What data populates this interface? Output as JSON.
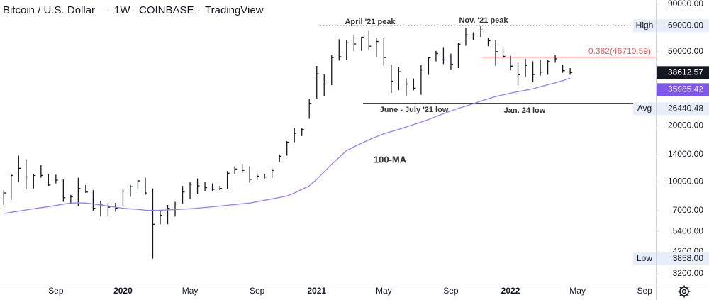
{
  "chart_data": {
    "type": "ohlc",
    "title": {
      "symbol": "Bitcoin / U.S. Dollar",
      "interval": "1W",
      "exchange": "COINBASE",
      "source": "TradingView"
    },
    "log_scale": true,
    "ylim": [
      2830,
      94800
    ],
    "yticks": [
      {
        "value": 90000,
        "label": "90000.00"
      },
      {
        "value": 50000,
        "label": "50000.00"
      },
      {
        "value": 20000,
        "label": "20000.00"
      },
      {
        "value": 14000,
        "label": "14000.00"
      },
      {
        "value": 10000,
        "label": "10000.00"
      },
      {
        "value": 7000,
        "label": "7000.00"
      },
      {
        "value": 5400,
        "label": "5400.00"
      },
      {
        "value": 4200,
        "label": "4200.00"
      },
      {
        "value": 3200,
        "label": "3200.00"
      }
    ],
    "categories": [
      null,
      null,
      null,
      null,
      null,
      null,
      null,
      "Sep",
      null,
      null,
      null,
      null,
      null,
      null,
      null,
      null,
      "2020",
      null,
      null,
      null,
      null,
      null,
      null,
      null,
      null,
      "May",
      null,
      null,
      null,
      null,
      null,
      null,
      null,
      null,
      "Sep",
      null,
      null,
      null,
      null,
      null,
      null,
      null,
      "2021",
      null,
      null,
      null,
      null,
      null,
      null,
      null,
      null,
      "May",
      null,
      null,
      null,
      null,
      null,
      null,
      null,
      null,
      "Sep",
      null,
      null,
      null,
      null,
      null,
      null,
      null,
      "2022",
      null,
      null,
      null,
      null,
      null,
      null,
      null,
      null,
      "May",
      null,
      null,
      null,
      null,
      null,
      null,
      null,
      null,
      "Sep",
      null
    ],
    "bar_color": "#131722",
    "high": [
      9000,
      11000,
      13800,
      13200,
      11000,
      12300,
      11000,
      10900,
      10300,
      8500,
      10500,
      9600,
      9000,
      7900,
      7700,
      7700,
      9200,
      9600,
      10200,
      10500,
      9200,
      7000,
      7500,
      7800,
      9500,
      10000,
      10400,
      10000,
      9800,
      9500,
      11400,
      12100,
      12500,
      12100,
      11100,
      11000,
      11800,
      14000,
      16500,
      19400,
      19400,
      28000,
      41900,
      37800,
      48000,
      58300,
      57500,
      61700,
      60000,
      64800,
      59500,
      59000,
      42500,
      41300,
      36000,
      35900,
      42300,
      46700,
      50500,
      52900,
      48800,
      56000,
      67000,
      63500,
      69000,
      59500,
      57500,
      51900,
      47500,
      43500,
      45800,
      44400,
      45400,
      45200,
      48200,
      42500,
      40800,
      null,
      null,
      null,
      null,
      null,
      null,
      null,
      null,
      null,
      null,
      null
    ],
    "low": [
      7500,
      8000,
      10000,
      9100,
      9200,
      10500,
      9500,
      9800,
      7800,
      7700,
      7400,
      8700,
      7000,
      6500,
      6500,
      6900,
      7400,
      8300,
      9100,
      8500,
      3858,
      5900,
      5900,
      6500,
      7600,
      8100,
      8600,
      8900,
      8900,
      9000,
      9100,
      11000,
      11100,
      9900,
      10200,
      10400,
      10500,
      12800,
      13800,
      16300,
      17600,
      21800,
      28000,
      28800,
      33000,
      44800,
      45000,
      50300,
      50500,
      51000,
      47000,
      42000,
      30000,
      31000,
      28800,
      31000,
      29300,
      37500,
      44300,
      42900,
      40000,
      40800,
      53800,
      58000,
      60000,
      53500,
      42000,
      45700,
      39700,
      32900,
      36600,
      34300,
      37200,
      37600,
      43600,
      38500,
      37600,
      null,
      null,
      null,
      null,
      null,
      null,
      null,
      null,
      null,
      null,
      null
    ],
    "close": [
      8700,
      10800,
      11800,
      10600,
      10800,
      10800,
      9600,
      10200,
      8200,
      8300,
      9200,
      8800,
      7200,
      7500,
      7300,
      7200,
      8900,
      9400,
      10100,
      8700,
      5900,
      6600,
      7200,
      7600,
      8800,
      9700,
      9500,
      9300,
      9100,
      9200,
      11100,
      11700,
      11500,
      10300,
      10700,
      10600,
      11500,
      13700,
      16300,
      18200,
      19100,
      26400,
      38000,
      33500,
      46500,
      47000,
      55800,
      55000,
      59800,
      53500,
      56700,
      46500,
      34700,
      39000,
      33500,
      31800,
      39900,
      46300,
      48900,
      45200,
      42800,
      54900,
      61500,
      61400,
      65400,
      57200,
      50000,
      47200,
      41800,
      37600,
      42200,
      37700,
      38800,
      44400,
      45800,
      39500,
      38612.57,
      null,
      null,
      null,
      null,
      null,
      null,
      null,
      null,
      null,
      null,
      null
    ],
    "ma": {
      "color": "#9c7cf4",
      "values": [
        6750,
        6850,
        6950,
        7050,
        7150,
        7250,
        7350,
        7450,
        7580,
        7680,
        7700,
        7680,
        7600,
        7500,
        7400,
        7300,
        7200,
        7150,
        7100,
        7030,
        7020,
        7030,
        7050,
        7080,
        7120,
        7160,
        7210,
        7270,
        7330,
        7400,
        7470,
        7540,
        7610,
        7680,
        7810,
        7950,
        8090,
        8230,
        8380,
        8700,
        9100,
        9500,
        10300,
        11300,
        12400,
        13500,
        14700,
        15400,
        16100,
        16800,
        17450,
        18100,
        18600,
        19100,
        19700,
        20300,
        20900,
        21600,
        22400,
        23200,
        24000,
        24800,
        25500,
        26300,
        27100,
        27900,
        28700,
        29300,
        29900,
        30500,
        31000,
        31600,
        32400,
        33200,
        34000,
        34900,
        35985.42,
        null,
        null,
        null,
        null,
        null,
        null,
        null,
        null,
        null,
        null,
        null
      ]
    },
    "price_labels": [
      {
        "name": "High",
        "value": 69000,
        "label": "69000.00",
        "color": "#e8eef8",
        "text_color": "#131722"
      },
      {
        "value": 38612.57,
        "label": "38612.57",
        "color": "#131722",
        "text_color": "#ffffff"
      },
      {
        "value": 35985.42,
        "label": "35985.42",
        "color": "#7e57e8",
        "text_color": "#ffffff"
      },
      {
        "name": "Avg",
        "value": 26440.48,
        "label": "26440.48",
        "color": "#e8eef8",
        "text_color": "#131722"
      },
      {
        "name": "Low",
        "value": 3858,
        "label": "3858.00",
        "color": "#e8eef8",
        "text_color": "#131722"
      }
    ],
    "fib": {
      "value": 46710.59,
      "label": "0.382(46710.59)",
      "color": "#e05a5a"
    },
    "annotations": [
      "April '21 peak",
      "Nov. '21 peak",
      "June - July '21 low",
      "Jan. 24 low",
      "100-MA"
    ]
  }
}
